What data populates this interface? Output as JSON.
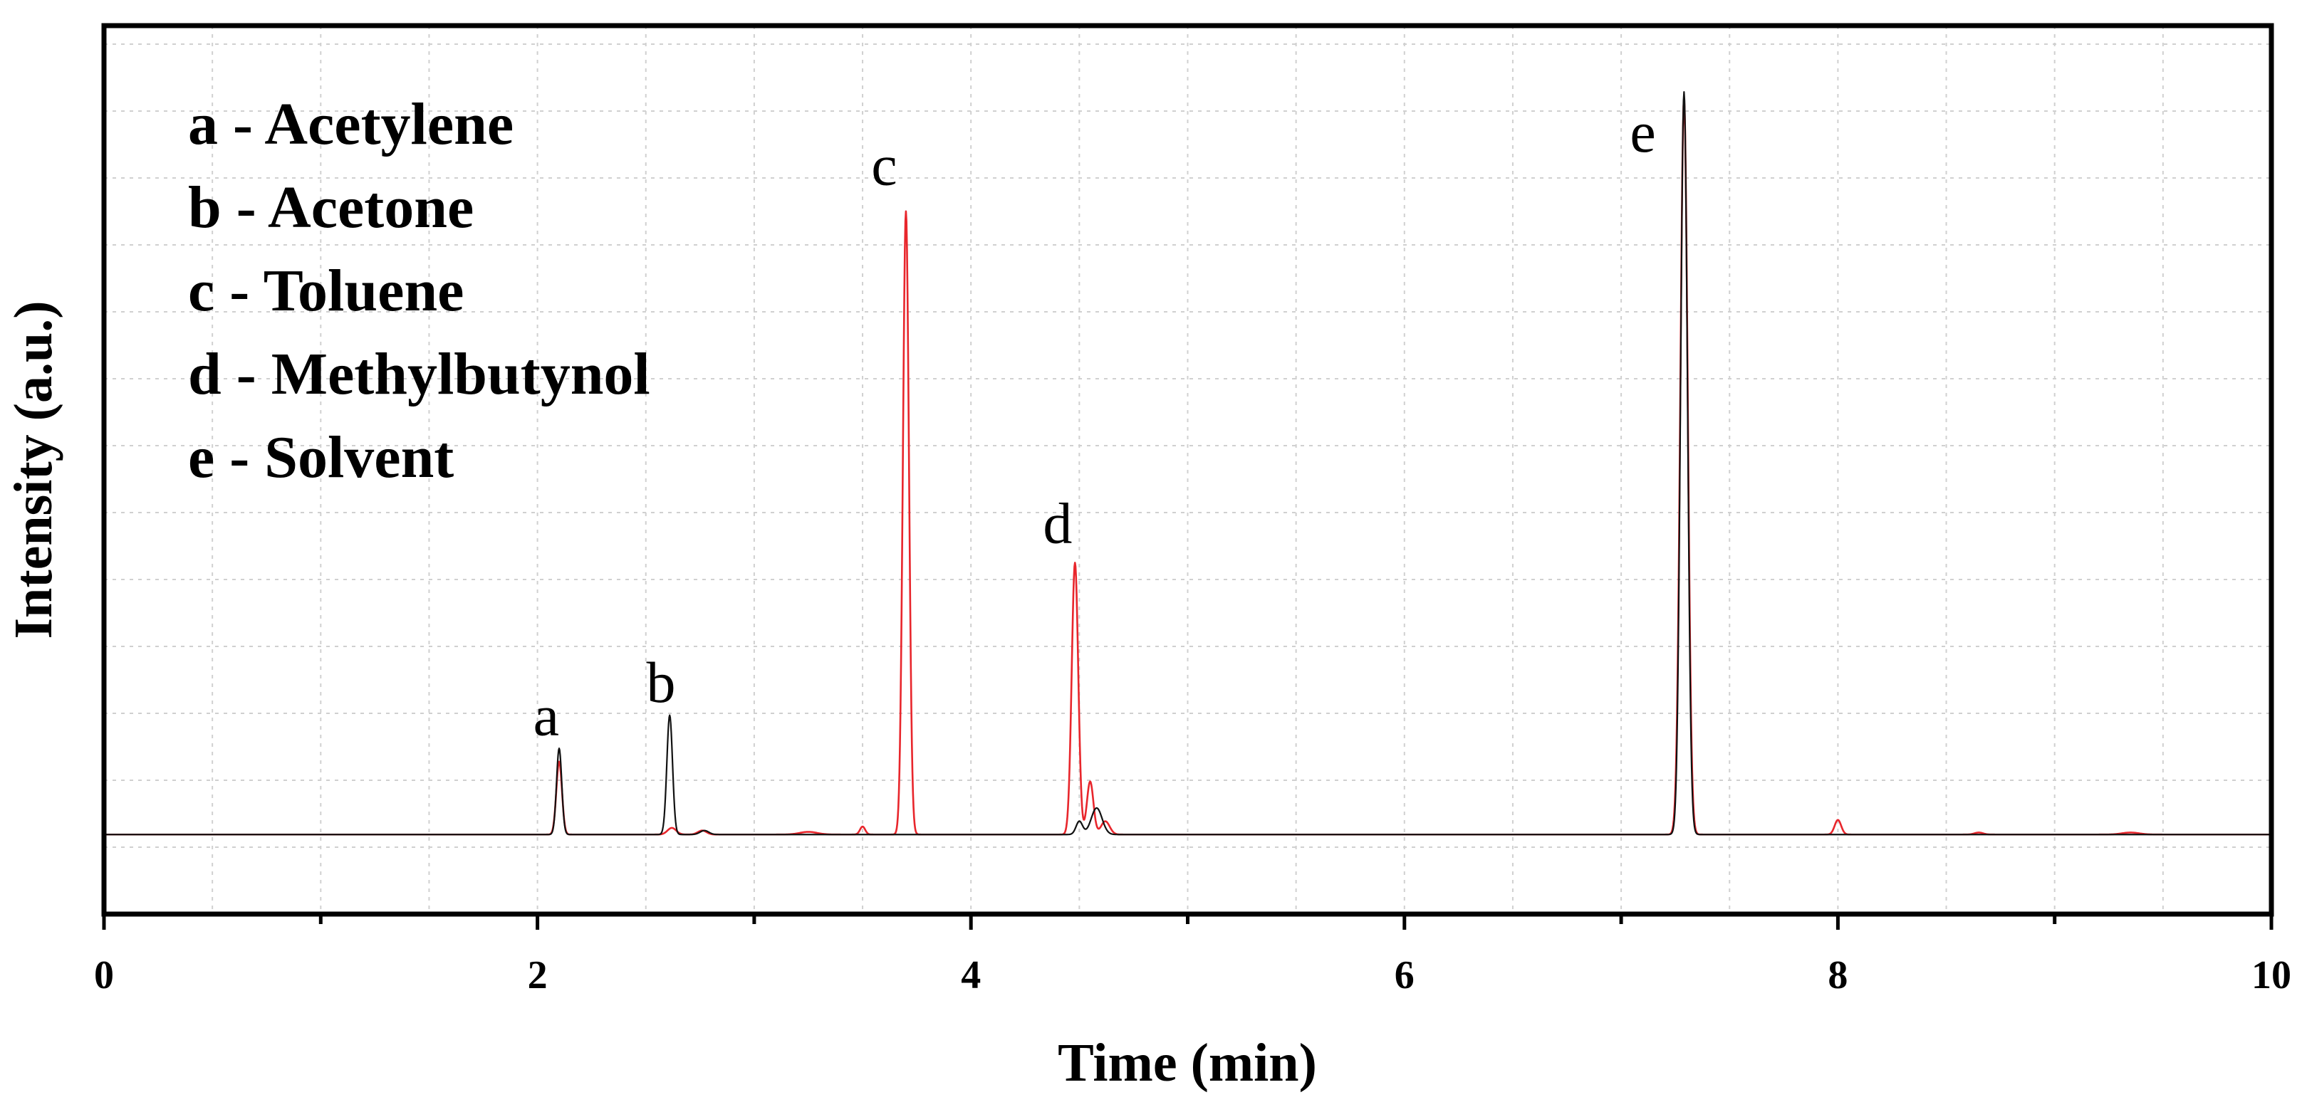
{
  "chart_data": {
    "type": "line",
    "title": "",
    "xlabel": "Time (min)",
    "ylabel": "Intensity (a.u.)",
    "xlim": [
      0,
      10
    ],
    "ylim": [
      -0.12,
      1.22
    ],
    "x_ticks": [
      0,
      2,
      4,
      6,
      8,
      10
    ],
    "x_tick_labels": [
      "0",
      "2",
      "4",
      "6",
      "8",
      "10"
    ],
    "x_minor_step": 1,
    "grid": true,
    "legend_position": "top-left",
    "legend": [
      {
        "key": "a",
        "label": "a - Acetylene"
      },
      {
        "key": "b",
        "label": "b - Acetone"
      },
      {
        "key": "c",
        "label": "c - Toluene"
      },
      {
        "key": "d",
        "label": "d - Methylbutynol"
      },
      {
        "key": "e",
        "label": "e - Solvent"
      }
    ],
    "annotations": [
      {
        "text": "a",
        "x": 2.04,
        "y": 0.15
      },
      {
        "text": "b",
        "x": 2.57,
        "y": 0.2
      },
      {
        "text": "c",
        "x": 3.6,
        "y": 0.98
      },
      {
        "text": "d",
        "x": 4.4,
        "y": 0.44
      },
      {
        "text": "e",
        "x": 7.1,
        "y": 1.03
      }
    ],
    "series": [
      {
        "color": "#e8262c",
        "baseline": 0,
        "peaks": [
          {
            "x": 2.1,
            "y": 0.11,
            "w": 0.013
          },
          {
            "x": 2.62,
            "y": 0.01,
            "w": 0.02
          },
          {
            "x": 2.76,
            "y": 0.006,
            "w": 0.02
          },
          {
            "x": 3.25,
            "y": 0.004,
            "w": 0.04
          },
          {
            "x": 3.5,
            "y": 0.012,
            "w": 0.012
          },
          {
            "x": 3.7,
            "y": 0.94,
            "w": 0.014
          },
          {
            "x": 4.48,
            "y": 0.41,
            "w": 0.015
          },
          {
            "x": 4.55,
            "y": 0.08,
            "w": 0.015
          },
          {
            "x": 4.62,
            "y": 0.02,
            "w": 0.02
          },
          {
            "x": 7.29,
            "y": 1.11,
            "w": 0.017
          },
          {
            "x": 8.0,
            "y": 0.022,
            "w": 0.015
          },
          {
            "x": 8.65,
            "y": 0.003,
            "w": 0.02
          },
          {
            "x": 9.35,
            "y": 0.003,
            "w": 0.04
          }
        ]
      },
      {
        "color": "#111111",
        "baseline": 0,
        "peaks": [
          {
            "x": 2.1,
            "y": 0.13,
            "w": 0.012
          },
          {
            "x": 2.61,
            "y": 0.18,
            "w": 0.013
          },
          {
            "x": 2.77,
            "y": 0.006,
            "w": 0.02
          },
          {
            "x": 4.5,
            "y": 0.02,
            "w": 0.015
          },
          {
            "x": 4.58,
            "y": 0.04,
            "w": 0.025
          },
          {
            "x": 7.29,
            "y": 1.12,
            "w": 0.016
          }
        ]
      }
    ]
  }
}
